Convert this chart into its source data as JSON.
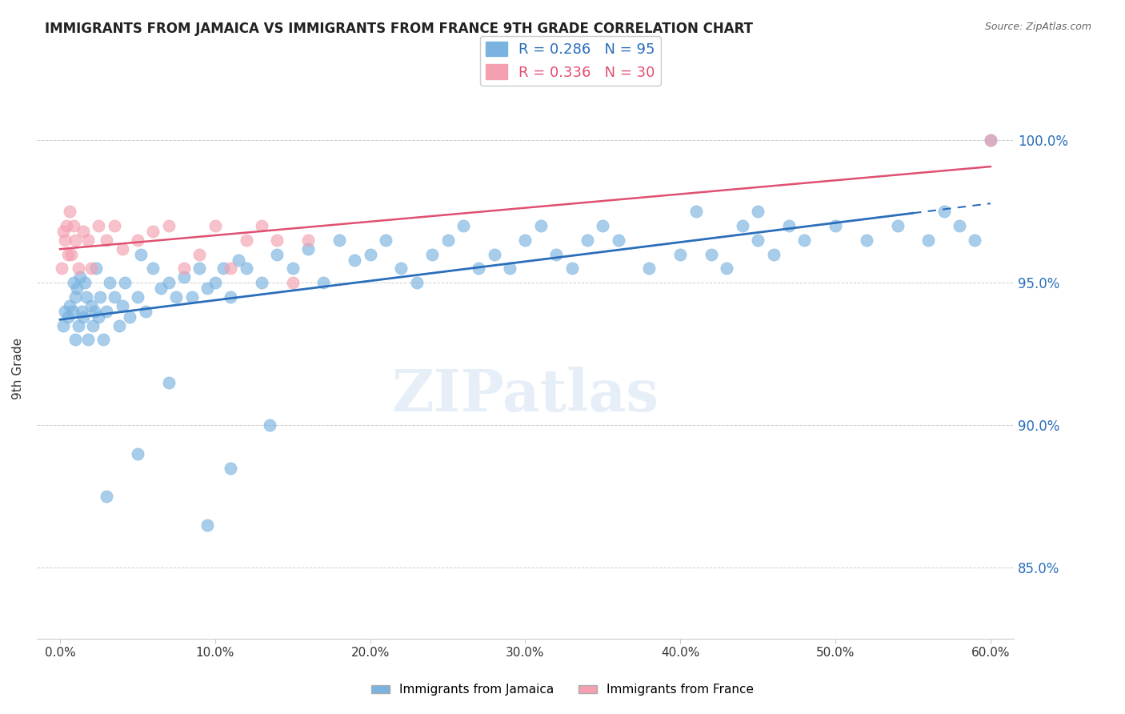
{
  "title": "IMMIGRANTS FROM JAMAICA VS IMMIGRANTS FROM FRANCE 9TH GRADE CORRELATION CHART",
  "source": "Source: ZipAtlas.com",
  "xlabel": "",
  "ylabel": "9th Grade",
  "legend_label1": "Immigrants from Jamaica",
  "legend_label2": "Immigrants from France",
  "r1": 0.286,
  "n1": 95,
  "r2": 0.336,
  "n2": 30,
  "color_jamaica": "#7ab3e0",
  "color_france": "#f4a0b0",
  "color_line_jamaica": "#2a6ebb",
  "color_line_france": "#e05070",
  "xlim": [
    0.0,
    60.0
  ],
  "ylim": [
    82.5,
    101.5
  ],
  "yticks": [
    85.0,
    90.0,
    95.0,
    100.0
  ],
  "xticks": [
    0.0,
    10.0,
    20.0,
    30.0,
    40.0,
    50.0,
    60.0
  ],
  "watermark": "ZIPatlas",
  "jamaica_x": [
    0.2,
    0.3,
    0.5,
    0.6,
    0.8,
    0.9,
    1.0,
    1.0,
    1.1,
    1.2,
    1.3,
    1.4,
    1.5,
    1.6,
    1.7,
    1.8,
    2.0,
    2.1,
    2.2,
    2.3,
    2.5,
    2.6,
    2.8,
    3.0,
    3.2,
    3.5,
    3.8,
    4.0,
    4.2,
    4.5,
    5.0,
    5.2,
    5.5,
    6.0,
    6.5,
    7.0,
    7.5,
    8.0,
    8.5,
    9.0,
    9.5,
    10.0,
    10.5,
    11.0,
    11.5,
    12.0,
    13.0,
    14.0,
    15.0,
    16.0,
    17.0,
    18.0,
    19.0,
    20.0,
    21.0,
    22.0,
    23.0,
    24.0,
    25.0,
    26.0,
    27.0,
    28.0,
    29.0,
    30.0,
    31.0,
    32.0,
    33.0,
    34.0,
    35.0,
    36.0,
    38.0,
    40.0,
    41.0,
    42.0,
    43.0,
    44.0,
    45.0,
    46.0,
    47.0,
    48.0,
    50.0,
    52.0,
    54.0,
    56.0,
    57.0,
    58.0,
    59.0,
    60.0,
    45.0,
    3.0,
    5.0,
    7.0,
    9.5,
    11.0,
    13.5
  ],
  "jamaica_y": [
    93.5,
    94.0,
    93.8,
    94.2,
    94.0,
    95.0,
    93.0,
    94.5,
    94.8,
    93.5,
    95.2,
    94.0,
    93.8,
    95.0,
    94.5,
    93.0,
    94.2,
    93.5,
    94.0,
    95.5,
    93.8,
    94.5,
    93.0,
    94.0,
    95.0,
    94.5,
    93.5,
    94.2,
    95.0,
    93.8,
    94.5,
    96.0,
    94.0,
    95.5,
    94.8,
    95.0,
    94.5,
    95.2,
    94.5,
    95.5,
    94.8,
    95.0,
    95.5,
    94.5,
    95.8,
    95.5,
    95.0,
    96.0,
    95.5,
    96.2,
    95.0,
    96.5,
    95.8,
    96.0,
    96.5,
    95.5,
    95.0,
    96.0,
    96.5,
    97.0,
    95.5,
    96.0,
    95.5,
    96.5,
    97.0,
    96.0,
    95.5,
    96.5,
    97.0,
    96.5,
    95.5,
    96.0,
    97.5,
    96.0,
    95.5,
    97.0,
    96.5,
    96.0,
    97.0,
    96.5,
    97.0,
    96.5,
    97.0,
    96.5,
    97.5,
    97.0,
    96.5,
    100.0,
    97.5,
    87.5,
    89.0,
    91.5,
    86.5,
    88.5,
    90.0
  ],
  "france_x": [
    0.1,
    0.2,
    0.3,
    0.4,
    0.5,
    0.6,
    0.7,
    0.9,
    1.0,
    1.2,
    1.5,
    1.8,
    2.0,
    2.5,
    3.0,
    3.5,
    4.0,
    5.0,
    6.0,
    7.0,
    8.0,
    9.0,
    10.0,
    11.0,
    12.0,
    13.0,
    14.0,
    15.0,
    16.0,
    60.0
  ],
  "france_y": [
    95.5,
    96.8,
    96.5,
    97.0,
    96.0,
    97.5,
    96.0,
    97.0,
    96.5,
    95.5,
    96.8,
    96.5,
    95.5,
    97.0,
    96.5,
    97.0,
    96.2,
    96.5,
    96.8,
    97.0,
    95.5,
    96.0,
    97.0,
    95.5,
    96.5,
    97.0,
    96.5,
    95.0,
    96.5,
    100.0
  ]
}
